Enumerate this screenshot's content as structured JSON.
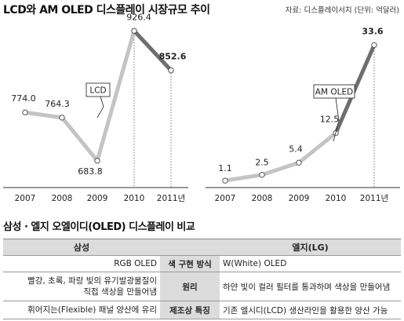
{
  "title": "LCD와 AM OLED 디스플레이 시장규모 추이",
  "source": "자료: 디스플레이서치 (단위: 억달러)",
  "chart_data": [
    {
      "type": "line",
      "name": "LCD",
      "label": "LCD",
      "categories": [
        "2007",
        "2008",
        "2009",
        "2010",
        "2011년"
      ],
      "values": [
        774.0,
        764.3,
        683.8,
        926.4,
        852.6
      ],
      "value_labels": [
        "774.0",
        "764.3",
        "683.8",
        "926.4",
        "852.6"
      ],
      "ylim": [
        660,
        940
      ],
      "colors": {
        "actual": "#c4c4c4",
        "forecast": "#6e6e6e"
      }
    },
    {
      "type": "line",
      "name": "AM OLED",
      "label": "AM OLED",
      "categories": [
        "2007",
        "2008",
        "2009",
        "2010",
        "2011년"
      ],
      "values": [
        1.1,
        2.5,
        5.4,
        12.5,
        33.6
      ],
      "value_labels": [
        "1.1",
        "2.5",
        "5.4",
        "12.5",
        "33.6"
      ],
      "ylim": [
        0,
        35
      ],
      "colors": {
        "actual": "#c4c4c4",
        "forecast": "#6e6e6e"
      }
    }
  ],
  "comparison": {
    "title": "삼성 · 엘지 오엘이디(OLED) 디스플레이 비교",
    "headers": {
      "left": "삼성",
      "right": "엘지(LG)"
    },
    "rows": [
      {
        "left": "RGB OLED",
        "mid": "색 구현 방식",
        "right": "W(White) OLED"
      },
      {
        "left": "빨강, 초록, 파랑 빛의 유기발광물질이\n직접 색상을 만들어냄",
        "mid": "원리",
        "right": "하얀 빛이 컬러 필터를 통과하며 색상을 만들어냄"
      },
      {
        "left": "휘어지는(Flexible) 패널 양산에 유리",
        "mid": "제조상 특징",
        "right": "기존 엘시디(LCD) 생산라인을 활용한 양산 가능"
      }
    ]
  }
}
